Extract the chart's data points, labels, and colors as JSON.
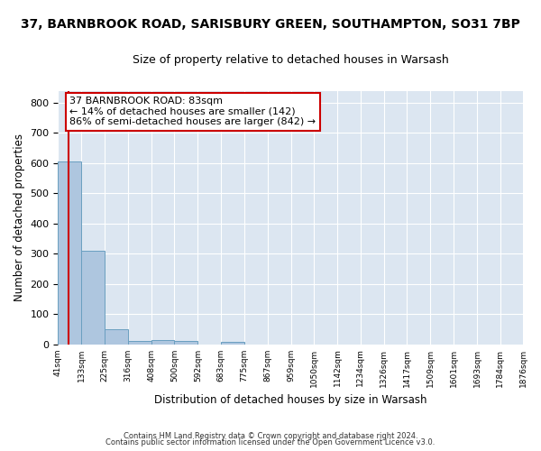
{
  "title": "37, BARNBROOK ROAD, SARISBURY GREEN, SOUTHAMPTON, SO31 7BP",
  "subtitle": "Size of property relative to detached houses in Warsash",
  "xlabel": "Distribution of detached houses by size in Warsash",
  "ylabel": "Number of detached properties",
  "footer_line1": "Contains HM Land Registry data © Crown copyright and database right 2024.",
  "footer_line2": "Contains public sector information licensed under the Open Government Licence v3.0.",
  "bin_edges": [
    41,
    133,
    225,
    316,
    408,
    500,
    592,
    683,
    775,
    867,
    959,
    1050,
    1142,
    1234,
    1326,
    1417,
    1509,
    1601,
    1693,
    1784,
    1876
  ],
  "bin_values": [
    606,
    310,
    50,
    10,
    13,
    10,
    0,
    8,
    0,
    0,
    0,
    0,
    0,
    0,
    0,
    0,
    0,
    0,
    0,
    0
  ],
  "bar_color": "#aec6df",
  "bar_edge_color": "#6a9fc0",
  "property_size": 83,
  "vline_color": "#cc0000",
  "annotation_line1": "37 BARNBROOK ROAD: 83sqm",
  "annotation_line2": "← 14% of detached houses are smaller (142)",
  "annotation_line3": "86% of semi-detached houses are larger (842) →",
  "annotation_box_color": "#ffffff",
  "annotation_box_edge_color": "#cc0000",
  "ylim": [
    0,
    840
  ],
  "yticks": [
    0,
    100,
    200,
    300,
    400,
    500,
    600,
    700,
    800
  ],
  "background_color": "#dce6f1",
  "grid_color": "#ffffff",
  "fig_background": "#ffffff",
  "title_fontsize": 10,
  "subtitle_fontsize": 9,
  "annotation_fontsize": 8
}
